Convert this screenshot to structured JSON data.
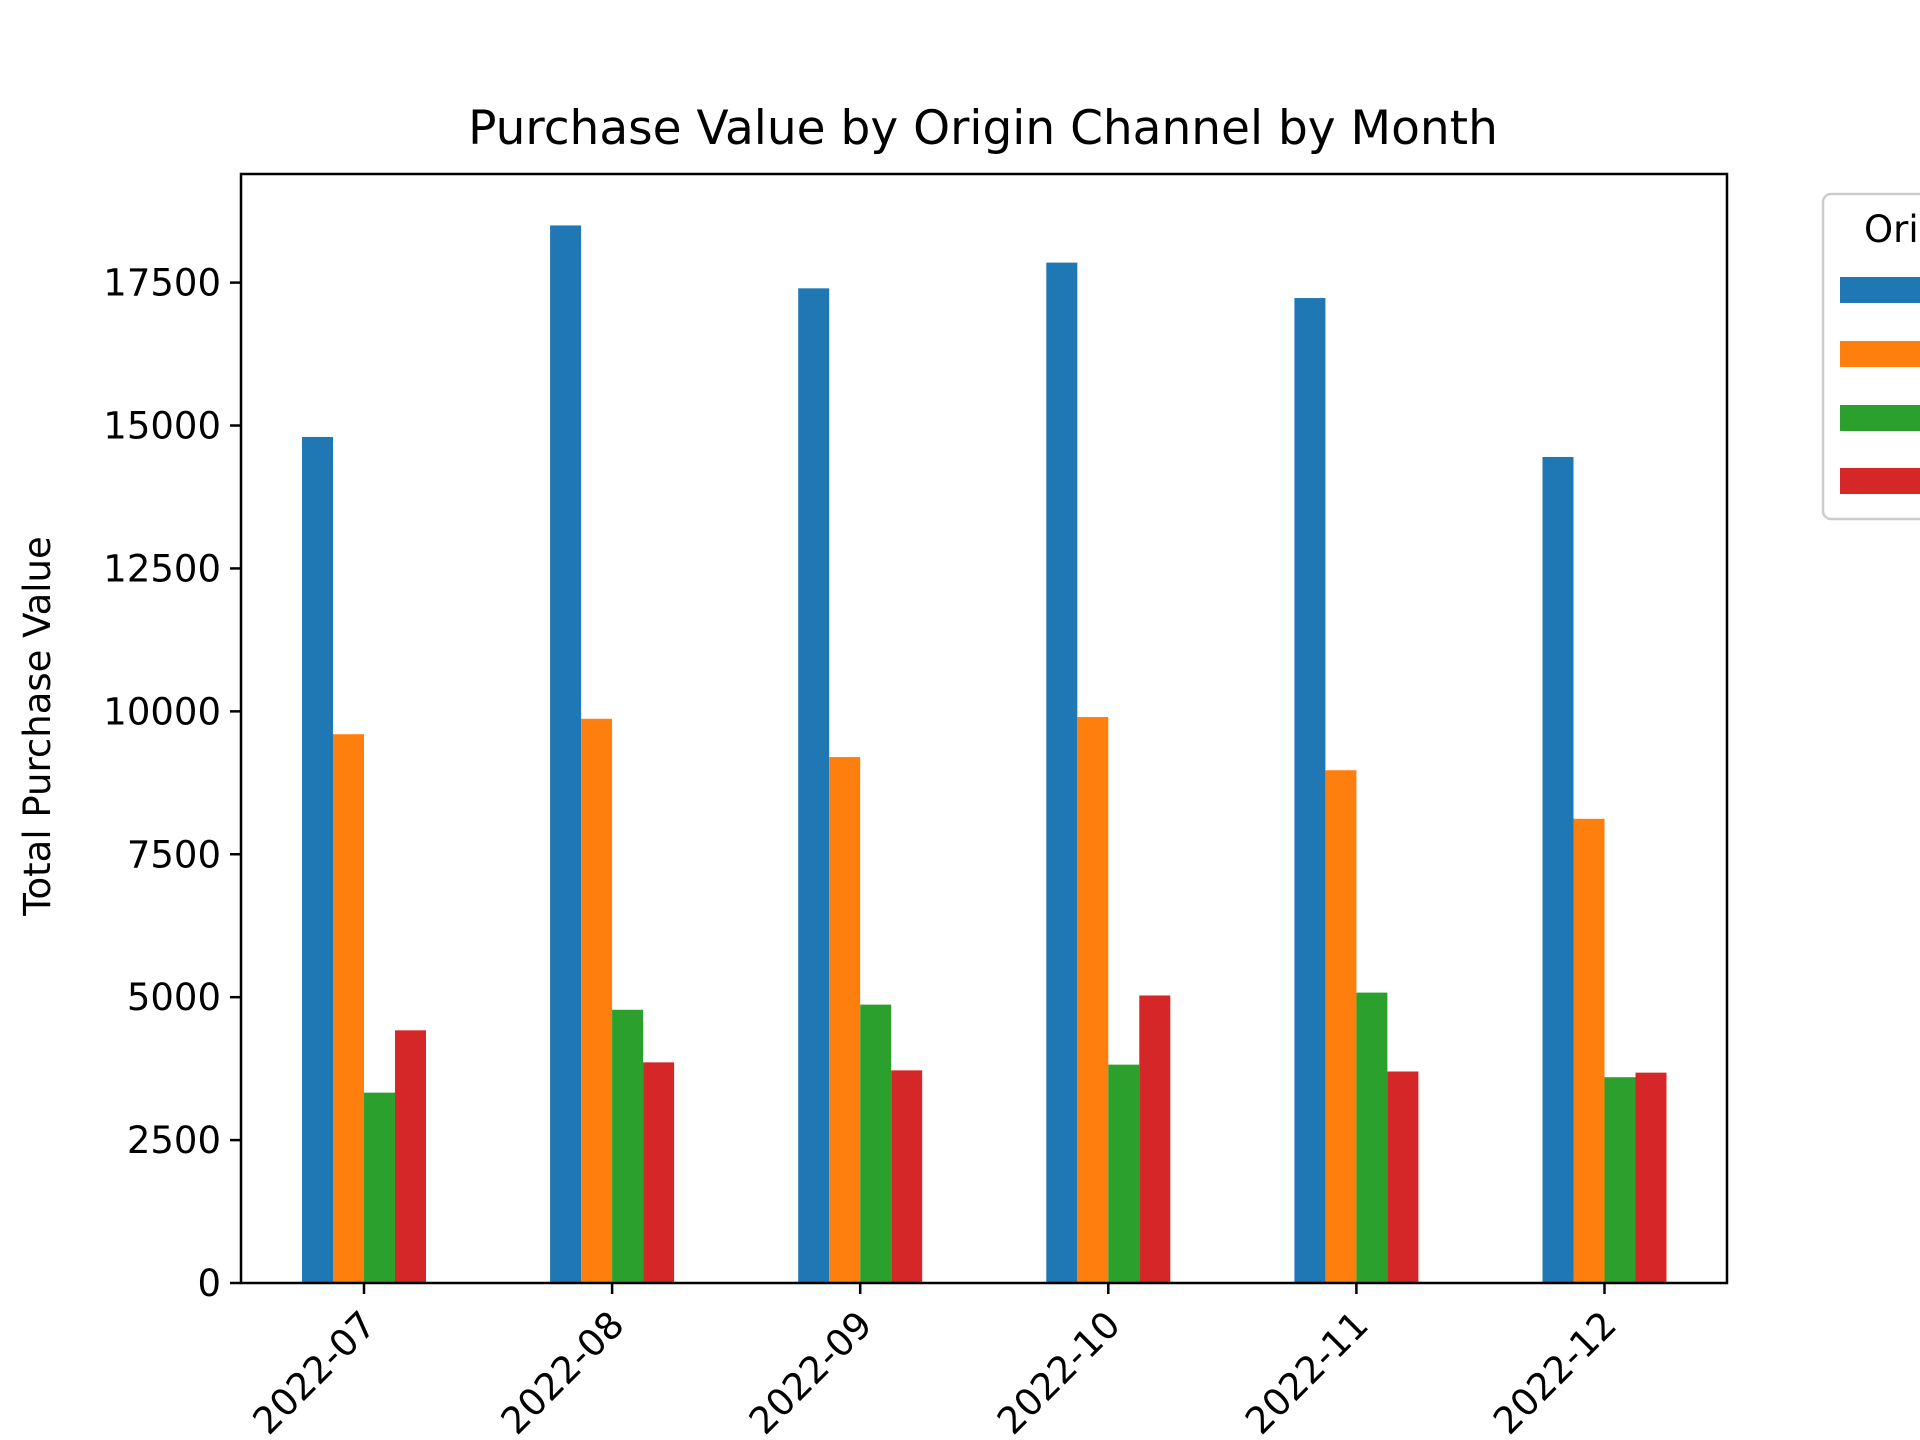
{
  "chart_data": {
    "type": "bar",
    "title": "Purchase Value by Origin Channel by Month",
    "xlabel": "",
    "ylabel": "Total Purchase Value",
    "categories": [
      "2022-07",
      "2022-08",
      "2022-09",
      "2022-10",
      "2022-11",
      "2022-12"
    ],
    "series": [
      {
        "color": "#1f77b4",
        "values": [
          14800,
          18500,
          17400,
          17850,
          17230,
          14450
        ]
      },
      {
        "color": "#ff7f0e",
        "values": [
          9600,
          9870,
          9200,
          9900,
          8970,
          8120
        ]
      },
      {
        "color": "#2ca02c",
        "values": [
          3330,
          4780,
          4870,
          3820,
          5080,
          3600
        ]
      },
      {
        "color": "#d62728",
        "values": [
          4420,
          3860,
          3720,
          5030,
          3700,
          3680
        ]
      }
    ],
    "ylim": [
      0,
      19400
    ],
    "yticks": [
      0,
      2500,
      5000,
      7500,
      10000,
      12500,
      15000,
      17500
    ],
    "ytick_labels": [
      "0",
      "2500",
      "5000",
      "7500",
      "10000",
      "12500",
      "15000",
      "17500"
    ],
    "legend": {
      "title": "Ori",
      "placement": "outside-top-right (clipped)"
    },
    "grid": false
  }
}
